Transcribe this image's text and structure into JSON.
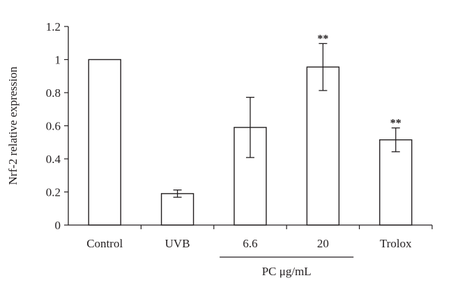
{
  "chart_data": {
    "type": "bar",
    "categories": [
      "Control",
      "UVB",
      "6.6",
      "20",
      "Trolox"
    ],
    "values": [
      1.0,
      0.19,
      0.59,
      0.955,
      0.515
    ],
    "error": [
      0,
      0.022,
      0.182,
      0.142,
      0.072
    ],
    "significance": [
      "",
      "",
      "",
      "**",
      "**"
    ],
    "ylabel": "Nrf-2 relative expression",
    "xlabel": "",
    "ylim": [
      0,
      1.2
    ],
    "yticks": [
      "0",
      "0.2",
      "0.4",
      "0.6",
      "0.8",
      "1",
      "1.2"
    ],
    "group_label": {
      "text": "PC μg/mL",
      "categories": [
        "6.6",
        "20"
      ]
    },
    "grid": false,
    "legend": "none"
  }
}
